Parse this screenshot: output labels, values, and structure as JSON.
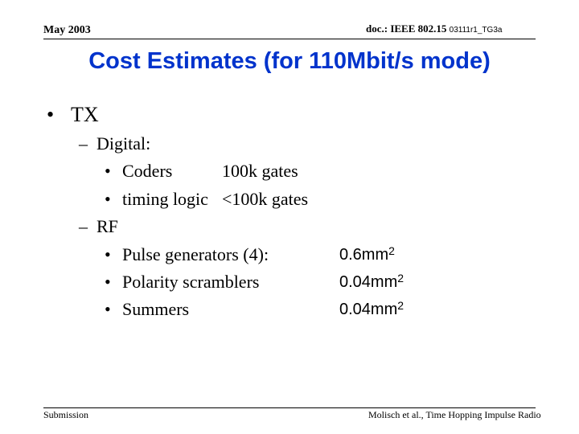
{
  "header": {
    "date": "May 2003",
    "doc_prefix": "doc.: IEEE 802.15",
    "doc_number": "03111r1_TG3a"
  },
  "title": "Cost Estimates (for 110Mbit/s mode)",
  "bullets": {
    "tx": {
      "marker": "•",
      "label": "TX"
    },
    "digital": {
      "marker": "–",
      "label": "Digital:",
      "items": [
        {
          "marker": "•",
          "label": "Coders",
          "value": "100k gates"
        },
        {
          "marker": "•",
          "label": "timing logic",
          "value": "<100k gates"
        }
      ]
    },
    "rf": {
      "marker": "–",
      "label": "RF",
      "items": [
        {
          "marker": "•",
          "label": "Pulse generators (4):",
          "value": "0.6mm",
          "exponent": "2"
        },
        {
          "marker": "•",
          "label": "Polarity scramblers",
          "value": "0.04mm",
          "exponent": "2"
        },
        {
          "marker": "•",
          "label": "Summers",
          "value": "0.04mm",
          "exponent": "2"
        }
      ]
    }
  },
  "footer": {
    "left": "Submission",
    "right": "Molisch et al., Time Hopping Impulse Radio"
  }
}
